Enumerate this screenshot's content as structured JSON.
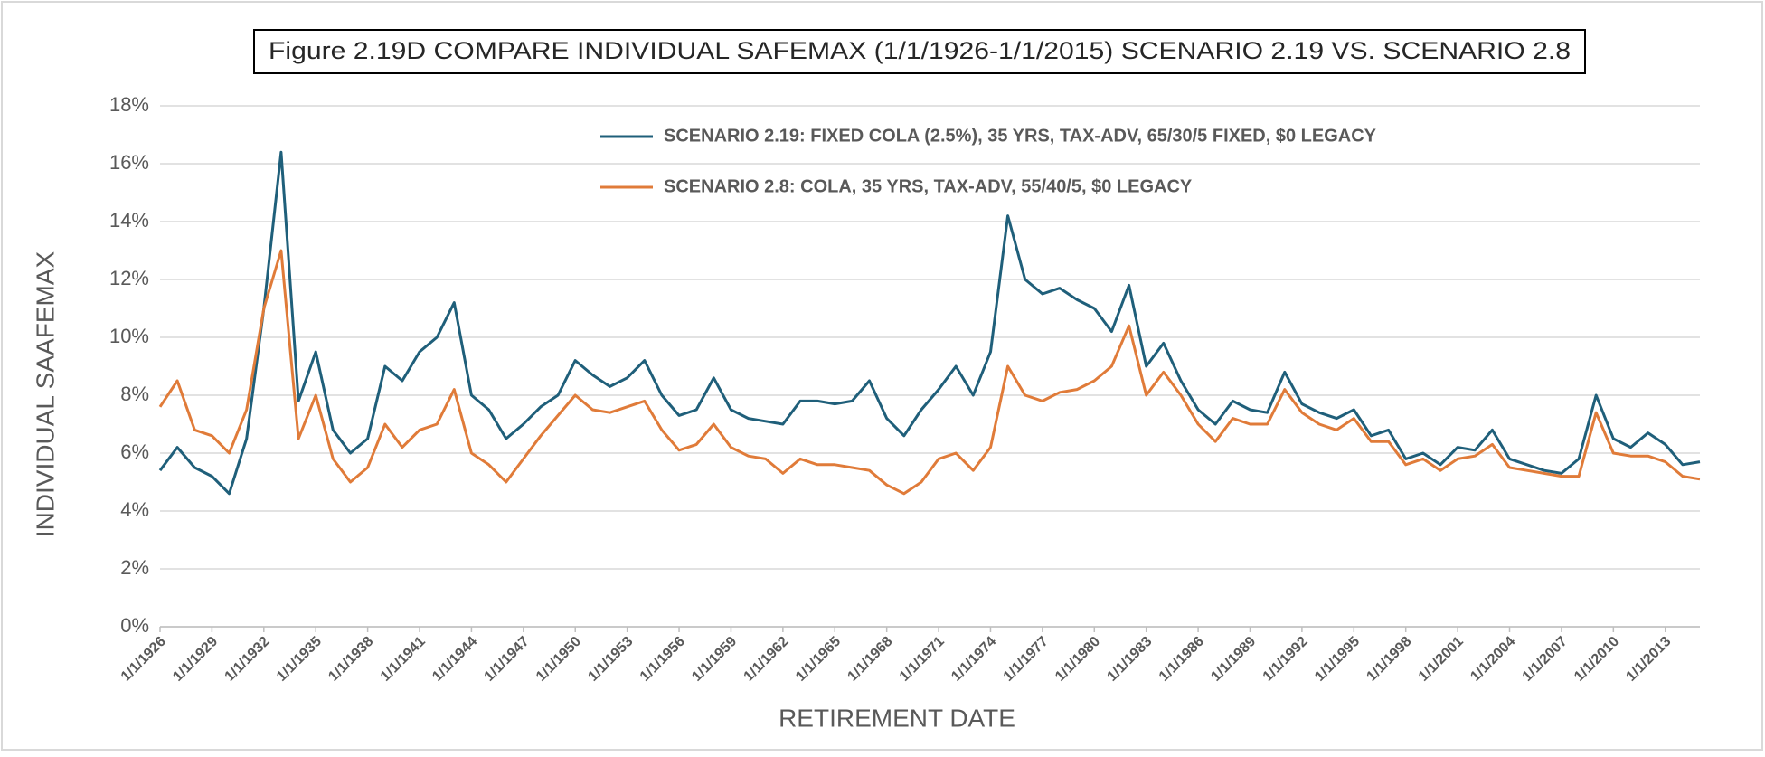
{
  "chart_data": {
    "type": "line",
    "title": "Figure 2.19D COMPARE INDIVIDUAL SAFEMAX (1/1/1926-1/1/2015) SCENARIO 2.19 VS. SCENARIO 2.8",
    "x_label": "RETIREMENT DATE",
    "y_label": "INDIVIDUAL SAAFEMAX",
    "categories": [
      "1/1/1926",
      null,
      null,
      "1/1/1929",
      null,
      null,
      "1/1/1932",
      null,
      null,
      "1/1/1935",
      null,
      null,
      "1/1/1938",
      null,
      null,
      "1/1/1941",
      null,
      null,
      "1/1/1944",
      null,
      null,
      "1/1/1947",
      null,
      null,
      "1/1/1950",
      null,
      null,
      "1/1/1953",
      null,
      null,
      "1/1/1956",
      null,
      null,
      "1/1/1959",
      null,
      null,
      "1/1/1962",
      null,
      null,
      "1/1/1965",
      null,
      null,
      "1/1/1968",
      null,
      null,
      "1/1/1971",
      null,
      null,
      "1/1/1974",
      null,
      null,
      "1/1/1977",
      null,
      null,
      "1/1/1980",
      null,
      null,
      "1/1/1983",
      null,
      null,
      "1/1/1986",
      null,
      null,
      "1/1/1989",
      null,
      null,
      "1/1/1992",
      null,
      null,
      "1/1/1995",
      null,
      null,
      "1/1/1998",
      null,
      null,
      "1/1/2001",
      null,
      null,
      "1/1/2004",
      null,
      null,
      "1/1/2007",
      null,
      null,
      "1/1/2010",
      null,
      null,
      "1/1/2013",
      null,
      null
    ],
    "series": [
      {
        "name": "SCENARIO 2.19: FIXED COLA (2.5%), 35 YRS, TAX-ADV, 65/30/5 FIXED, $0 LEGACY",
        "color": "#1f5f7a",
        "values": [
          5.4,
          6.2,
          5.5,
          5.2,
          4.6,
          6.5,
          11,
          16.4,
          7.8,
          9.5,
          6.8,
          6.0,
          6.5,
          9.0,
          8.5,
          9.5,
          10.0,
          11.2,
          8.0,
          7.5,
          6.5,
          7.0,
          7.6,
          8.0,
          9.2,
          8.7,
          8.3,
          8.6,
          9.2,
          8.0,
          7.3,
          7.5,
          8.6,
          7.5,
          7.2,
          7.1,
          7.0,
          7.8,
          7.8,
          7.7,
          7.8,
          8.5,
          7.2,
          6.6,
          7.5,
          8.2,
          9.0,
          8.0,
          9.5,
          14.2,
          12.0,
          11.5,
          11.7,
          11.3,
          11.0,
          10.2,
          11.8,
          9.0,
          9.8,
          8.5,
          7.5,
          7.0,
          7.8,
          7.5,
          7.4,
          8.8,
          7.7,
          7.4,
          7.2,
          7.5,
          6.6,
          6.8,
          5.8,
          6.0,
          5.6,
          6.2,
          6.1,
          6.8,
          5.8,
          5.6,
          5.4,
          5.3,
          5.8,
          8.0,
          6.5,
          6.2,
          6.7,
          6.3,
          5.6,
          5.7
        ]
      },
      {
        "name": "SCENARIO 2.8: COLA, 35 YRS, TAX-ADV, 55/40/5, $0 LEGACY",
        "color": "#e07b39",
        "values": [
          7.6,
          8.5,
          6.8,
          6.6,
          6.0,
          7.5,
          11,
          13,
          6.5,
          8.0,
          5.8,
          5.0,
          5.5,
          7.0,
          6.2,
          6.8,
          7.0,
          8.2,
          6.0,
          5.6,
          5.0,
          5.8,
          6.6,
          7.3,
          8.0,
          7.5,
          7.4,
          7.6,
          7.8,
          6.8,
          6.1,
          6.3,
          7.0,
          6.2,
          5.9,
          5.8,
          5.3,
          5.8,
          5.6,
          5.6,
          5.5,
          5.4,
          4.9,
          4.6,
          5.0,
          5.8,
          6.0,
          5.4,
          6.2,
          9.0,
          8.0,
          7.8,
          8.1,
          8.2,
          8.5,
          9.0,
          10.4,
          8.0,
          8.8,
          8.0,
          7.0,
          6.4,
          7.2,
          7.0,
          7.0,
          8.2,
          7.4,
          7.0,
          6.8,
          7.2,
          6.4,
          6.4,
          5.6,
          5.8,
          5.4,
          5.8,
          5.9,
          6.3,
          5.5,
          5.4,
          5.3,
          5.2,
          5.2,
          7.4,
          6.0,
          5.9,
          5.9,
          5.7,
          5.2,
          5.1
        ]
      }
    ],
    "ylim": [
      0,
      18
    ],
    "yticks": [
      {
        "value": 0,
        "label": "0%"
      },
      {
        "value": 2,
        "label": "2%"
      },
      {
        "value": 4,
        "label": "4%"
      },
      {
        "value": 6,
        "label": "6%"
      },
      {
        "value": 8,
        "label": "8%"
      },
      {
        "value": 10,
        "label": "10%"
      },
      {
        "value": 12,
        "label": "12%"
      },
      {
        "value": 14,
        "label": "14%"
      },
      {
        "value": 16,
        "label": "16%"
      },
      {
        "value": 18,
        "label": "18%"
      }
    ],
    "grid": true
  }
}
